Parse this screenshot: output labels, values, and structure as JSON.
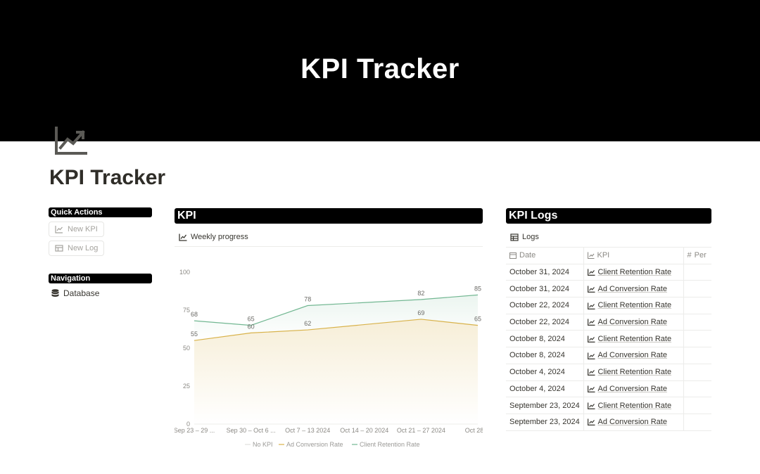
{
  "cover": {
    "title": "KPI Tracker"
  },
  "page": {
    "title": "KPI Tracker",
    "icon": "chart-line-up-icon"
  },
  "quick_actions": {
    "heading": "Quick Actions",
    "buttons": [
      {
        "label": "New KPI",
        "icon": "chart-line-icon"
      },
      {
        "label": "New Log",
        "icon": "table-icon"
      }
    ]
  },
  "navigation": {
    "heading": "Navigation",
    "items": [
      {
        "label": "Database",
        "icon": "database-icon"
      }
    ]
  },
  "kpi": {
    "heading": "KPI",
    "view_label": "Weekly progress",
    "chart_data": {
      "type": "area",
      "categories": [
        "Sep 23 – 29 ...",
        "Sep 30 – Oct 6 ...",
        "Oct 7 – 13 2024",
        "Oct 14 – 20 2024",
        "Oct 21 – 27 2024",
        "Oct 28 ..."
      ],
      "y_ticks": [
        0,
        25,
        50,
        75,
        100
      ],
      "ylim": [
        0,
        100
      ],
      "grid": false,
      "legend_position": "bottom",
      "series": [
        {
          "name": "No KPI",
          "color": "#e0dfdc",
          "points": []
        },
        {
          "name": "Ad Conversion Rate",
          "color": "#d8b24a",
          "points": [
            {
              "x": 0,
              "y": 55
            },
            {
              "x": 1,
              "y": 60
            },
            {
              "x": 2,
              "y": 62
            },
            {
              "x": 4,
              "y": 69
            },
            {
              "x": 5,
              "y": 65
            }
          ]
        },
        {
          "name": "Client Retention Rate",
          "color": "#72b792",
          "points": [
            {
              "x": 0,
              "y": 68
            },
            {
              "x": 1,
              "y": 65
            },
            {
              "x": 2,
              "y": 78
            },
            {
              "x": 4,
              "y": 82
            },
            {
              "x": 5,
              "y": 85
            }
          ]
        }
      ]
    }
  },
  "logs": {
    "heading": "KPI Logs",
    "view_label": "Logs",
    "columns": [
      "Date",
      "KPI",
      "Per"
    ],
    "rows": [
      {
        "date": "October 31, 2024",
        "kpi": "Client Retention Rate"
      },
      {
        "date": "October 31, 2024",
        "kpi": "Ad Conversion Rate"
      },
      {
        "date": "October 22, 2024",
        "kpi": "Client Retention Rate"
      },
      {
        "date": "October 22, 2024",
        "kpi": "Ad Conversion Rate"
      },
      {
        "date": "October 8, 2024",
        "kpi": "Client Retention Rate"
      },
      {
        "date": "October 8, 2024",
        "kpi": "Ad Conversion Rate"
      },
      {
        "date": "October 4, 2024",
        "kpi": "Client Retention Rate"
      },
      {
        "date": "October 4, 2024",
        "kpi": "Ad Conversion Rate"
      },
      {
        "date": "September 23, 2024",
        "kpi": "Client Retention Rate"
      },
      {
        "date": "September 23, 2024",
        "kpi": "Ad Conversion Rate"
      }
    ]
  }
}
